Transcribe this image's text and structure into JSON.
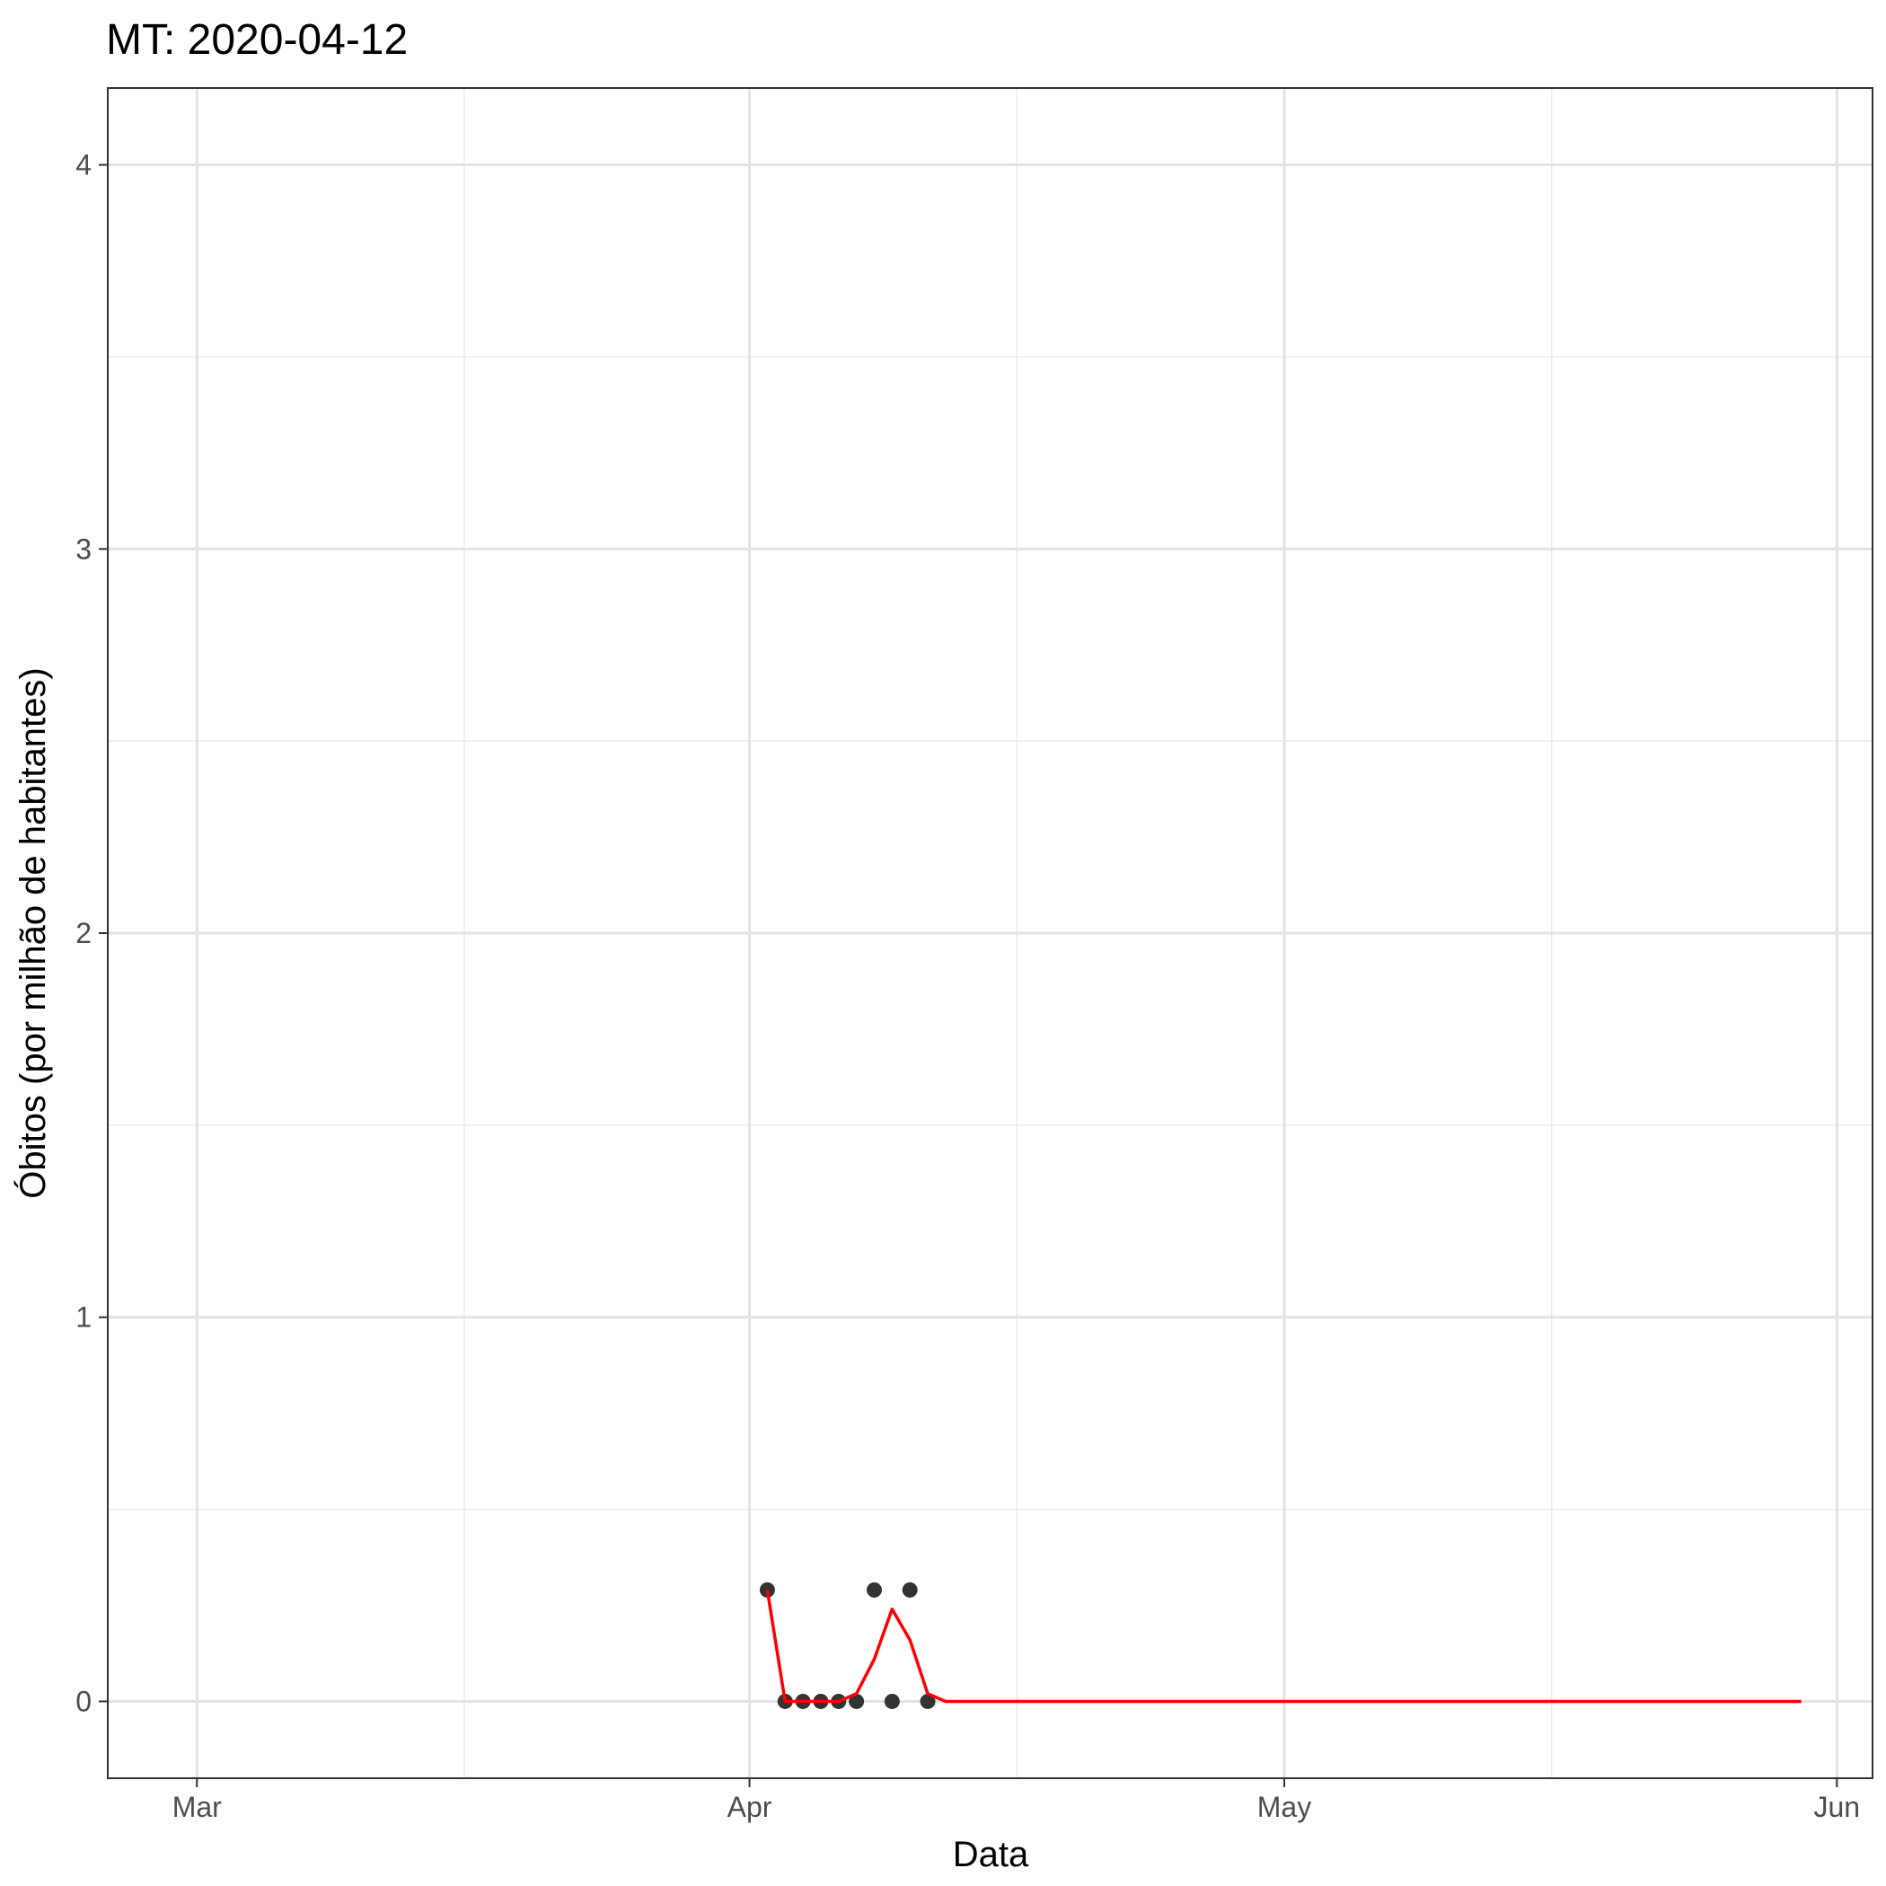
{
  "chart_data": {
    "type": "line",
    "title": "MT: 2020-04-12",
    "xlabel": "Data",
    "ylabel": "Óbitos (por milhão de habitantes)",
    "x_axis": {
      "type": "date",
      "range": [
        "2020-02-25",
        "2020-06-03"
      ],
      "ticks": [
        {
          "date": "2020-03-01",
          "label": "Mar"
        },
        {
          "date": "2020-04-01",
          "label": "Apr"
        },
        {
          "date": "2020-05-01",
          "label": "May"
        },
        {
          "date": "2020-06-01",
          "label": "Jun"
        }
      ],
      "minor_ticks": [
        "2020-03-16",
        "2020-04-16",
        "2020-05-16"
      ]
    },
    "y_axis": {
      "range": [
        -0.2,
        4.2
      ],
      "ticks": [
        0,
        1,
        2,
        3,
        4
      ],
      "minor_ticks": [
        0.5,
        1.5,
        2.5,
        3.5
      ]
    },
    "grid": true,
    "series": [
      {
        "kind": "points",
        "color": "#333333",
        "x": [
          "2020-04-02",
          "2020-04-03",
          "2020-04-04",
          "2020-04-05",
          "2020-04-06",
          "2020-04-07",
          "2020-04-08",
          "2020-04-09",
          "2020-04-10",
          "2020-04-11"
        ],
        "y": [
          0.29,
          0,
          0,
          0,
          0,
          0,
          0.29,
          0,
          0.29,
          0
        ]
      },
      {
        "kind": "line",
        "color": "#ff0000",
        "x": [
          "2020-04-02",
          "2020-04-03",
          "2020-04-04",
          "2020-04-05",
          "2020-04-06",
          "2020-04-07",
          "2020-04-08",
          "2020-04-09",
          "2020-04-10",
          "2020-04-11",
          "2020-04-12",
          "2020-05-30"
        ],
        "y": [
          0.29,
          0,
          0,
          0,
          0,
          0.02,
          0.11,
          0.24,
          0.16,
          0.02,
          0,
          0
        ]
      }
    ]
  }
}
